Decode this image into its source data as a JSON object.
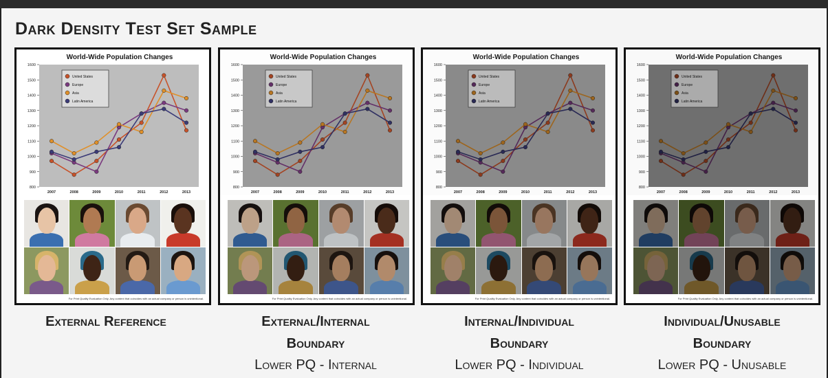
{
  "page_title": "Dark Density Test Set Sample",
  "panels": [
    {
      "caption_line1": "External Reference",
      "caption_line2": "",
      "subcaption": "",
      "plot_bg": "#bdbdbd",
      "darkness": 0
    },
    {
      "caption_line1": "External/Internal",
      "caption_line2": "Boundary",
      "subcaption": "Lower PQ - Internal",
      "plot_bg": "#9a9a9a",
      "darkness": 0.18
    },
    {
      "caption_line1": "Internal/Individual",
      "caption_line2": "Boundary",
      "subcaption": "Lower PQ - Individual",
      "plot_bg": "#8a8a8a",
      "darkness": 0.3
    },
    {
      "caption_line1": "Individual/Unusable",
      "caption_line2": "Boundary",
      "subcaption": "Lower PQ - Unusable",
      "plot_bg": "#6f6f6f",
      "darkness": 0.45
    }
  ],
  "disclaimer": "For Print Quality Evaluation Only. Any content that coincides with an actual company or person is unintentional.",
  "chart_data": {
    "type": "line",
    "title": "World-Wide Population Changes",
    "x": [
      "2007",
      "2008",
      "2009",
      "2010",
      "2011",
      "2012",
      "2013"
    ],
    "ylim": [
      800,
      1600
    ],
    "yticks": [
      800,
      900,
      1000,
      1100,
      1200,
      1300,
      1400,
      1500,
      1600
    ],
    "grid": false,
    "legend": "top-left",
    "series": [
      {
        "name": "United States",
        "color": "#c8532a",
        "values": [
          970,
          880,
          970,
          1110,
          1220,
          1530,
          1170
        ]
      },
      {
        "name": "Europe",
        "color": "#7a3a7f",
        "values": [
          1020,
          960,
          900,
          1190,
          1280,
          1350,
          1300
        ]
      },
      {
        "name": "Asia",
        "color": "#e0902a",
        "values": [
          1100,
          1020,
          1090,
          1210,
          1160,
          1430,
          1380
        ]
      },
      {
        "name": "Latin America",
        "color": "#3b3b78",
        "values": [
          1030,
          980,
          1030,
          1060,
          1280,
          1310,
          1220
        ]
      }
    ]
  },
  "photos": [
    {
      "name": "portrait-woman-asian",
      "bg": "#e8e6e2",
      "skin": "#e7c4a6",
      "hair": "#1b1412",
      "shirt": "#3a6fb0"
    },
    {
      "name": "portrait-woman-indian",
      "bg": "#6d8a3a",
      "skin": "#b07a52",
      "hair": "#1a110c",
      "shirt": "#d07aa0"
    },
    {
      "name": "portrait-man-caucasian",
      "bg": "#bfc3c5",
      "skin": "#d9a888",
      "hair": "#6a4a32",
      "shirt": "#e8ecef"
    },
    {
      "name": "portrait-boy-african",
      "bg": "#f0f0ec",
      "skin": "#5a3420",
      "hair": "#1a0f0a",
      "shirt": "#c83a2a"
    },
    {
      "name": "portrait-woman-blonde",
      "bg": "#8c9860",
      "skin": "#e4b896",
      "hair": "#d7b46a",
      "shirt": "#7a5a8a"
    },
    {
      "name": "portrait-woman-african",
      "bg": "#d9dbd8",
      "skin": "#3e2416",
      "hair": "#2a6a8a",
      "shirt": "#caa04a"
    },
    {
      "name": "portrait-man-asian",
      "bg": "#6c5a48",
      "skin": "#c99a74",
      "hair": "#231a14",
      "shirt": "#4a68a8"
    },
    {
      "name": "portrait-man-young-asian",
      "bg": "#9ab0c0",
      "skin": "#d8a882",
      "hair": "#1c1410",
      "shirt": "#6a9ad0"
    }
  ]
}
